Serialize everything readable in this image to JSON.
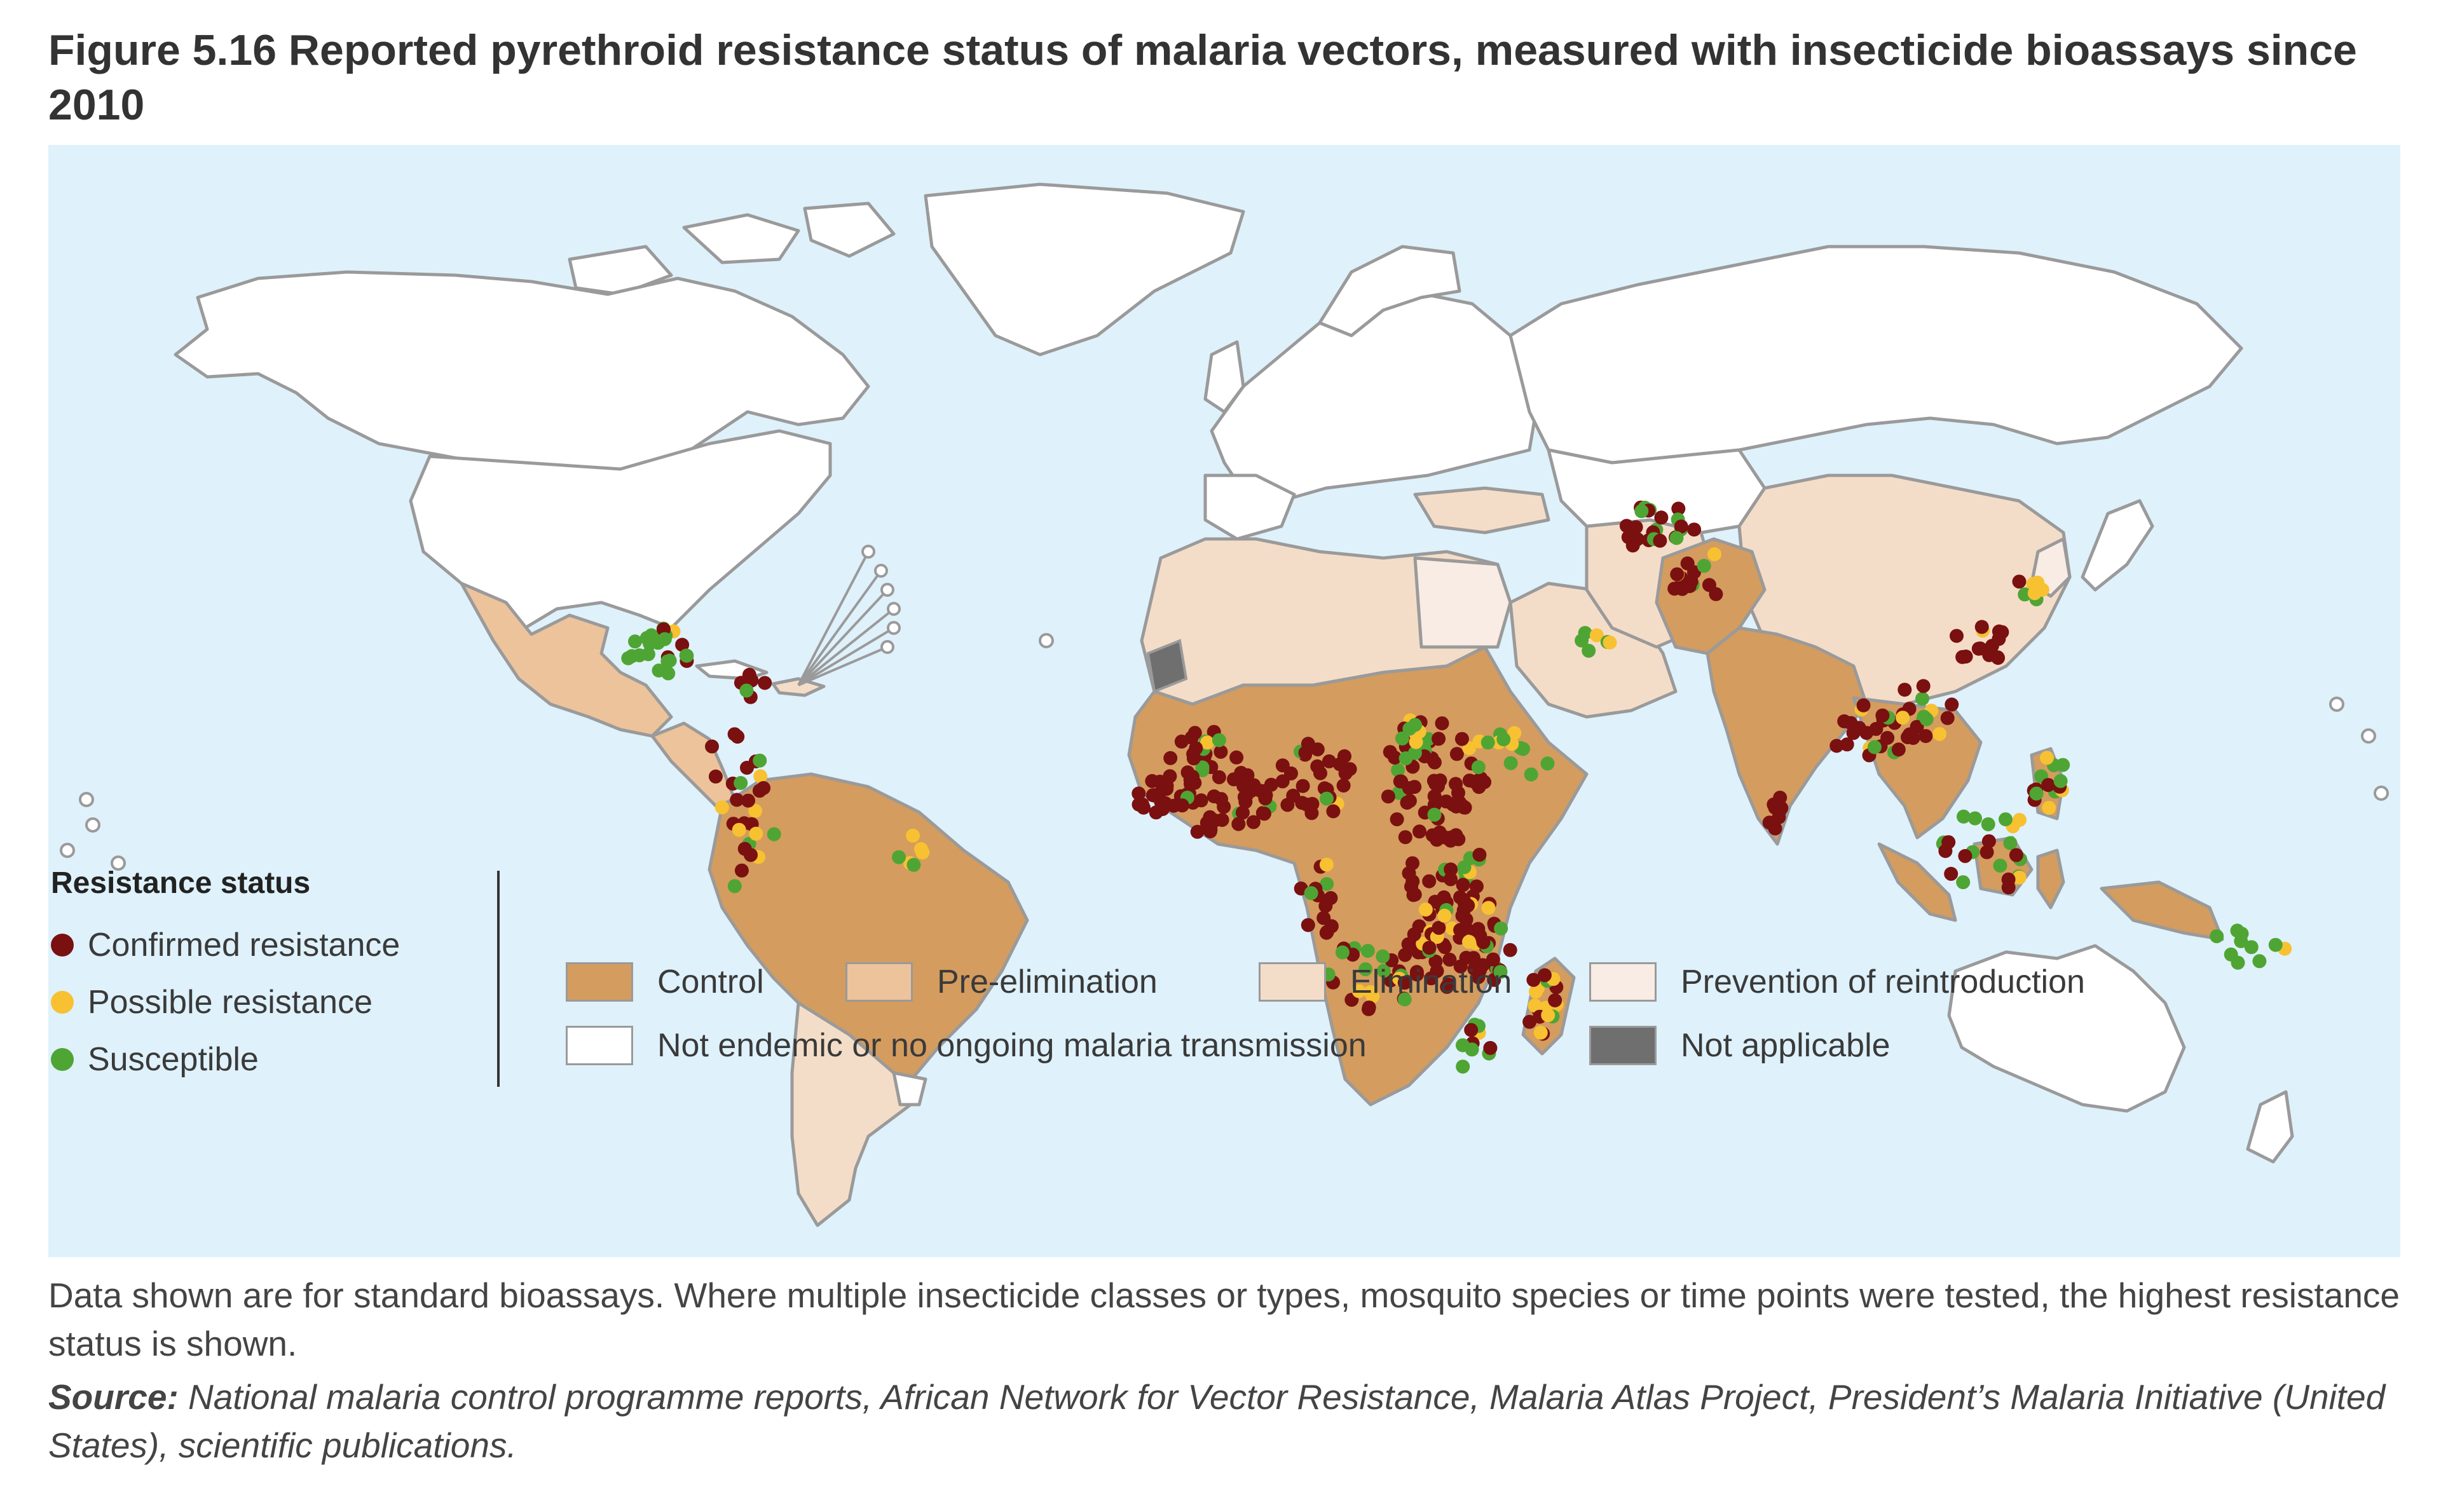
{
  "figure": {
    "title": "Figure 5.16 Reported pyrethroid resistance status of malaria vectors, measured with insecticide bioassays since 2010"
  },
  "legend_status": {
    "title": "Resistance status",
    "items": [
      {
        "label": "Confirmed resistance",
        "color": "#7a1010"
      },
      {
        "label": "Possible resistance",
        "color": "#f7c132"
      },
      {
        "label": "Susceptible",
        "color": "#4fa534"
      }
    ]
  },
  "legend_phase": {
    "items": [
      {
        "label": "Control",
        "color": "#d49c5e"
      },
      {
        "label": "Pre-elimination",
        "color": "#edc39b"
      },
      {
        "label": "Elimination",
        "color": "#f4ddc8"
      },
      {
        "label": "Prevention of reintroduction",
        "color": "#f9ece4"
      },
      {
        "label": "Not endemic or no ongoing malaria transmission",
        "color": "#ffffff"
      },
      {
        "label": "Not applicable",
        "color": "#6f6f6f"
      }
    ]
  },
  "colors": {
    "ocean": "#dff1fb",
    "border": "#9a9a9a"
  },
  "note": "Data shown are for standard bioassays. Where multiple insecticide classes or types, mosquito species or time points were tested, the highest resistance status is shown.",
  "source": {
    "label": "Source:",
    "text": " National malaria control programme reports, African Network for Vector Resistance, Malaria Atlas Project, President’s Malaria Initiative (United States), scientific publications."
  }
}
